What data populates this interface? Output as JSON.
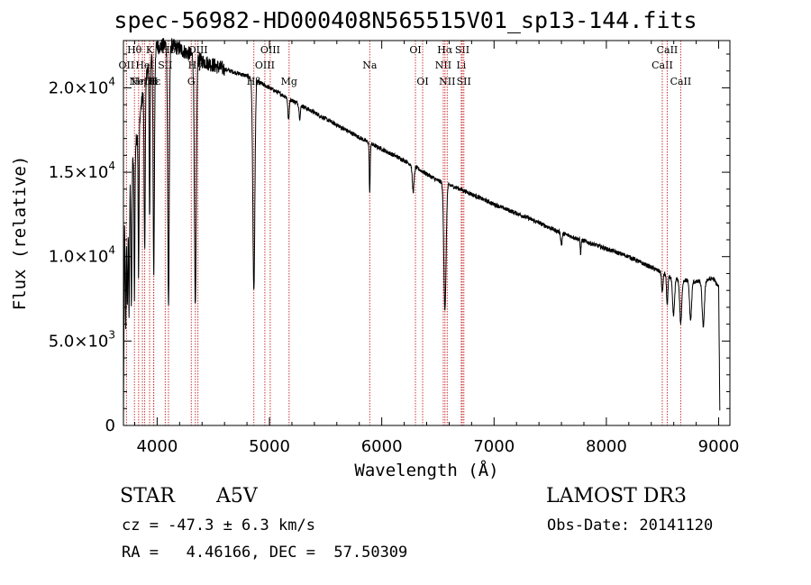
{
  "page": {
    "title": "spec-56982-HD000408N565515V01_sp13-144.fits",
    "object_class": "STAR",
    "subclass": "A5V",
    "survey": "LAMOST DR3",
    "cz_text": "cz = -47.3 ± 6.3 km/s",
    "obs_date_text": "Obs-Date: 20141120",
    "coords_text": "RA =   4.46166, DEC =  57.50309"
  },
  "colors": {
    "line_marker": "#cc3333",
    "spectrum": "#000000",
    "axis": "#000000"
  },
  "chart_data": {
    "type": "line",
    "title": "spec-56982-HD000408N565515V01_sp13-144.fits",
    "xlabel": "Wavelength (Å)",
    "ylabel": "Flux (relative)",
    "xlim": [
      3700,
      9100
    ],
    "ylim": [
      0,
      22800
    ],
    "grid": false,
    "x_ticks": [
      {
        "value": 4000,
        "label": "4000"
      },
      {
        "value": 5000,
        "label": "5000"
      },
      {
        "value": 6000,
        "label": "6000"
      },
      {
        "value": 7000,
        "label": "7000"
      },
      {
        "value": 8000,
        "label": "8000"
      },
      {
        "value": 9000,
        "label": "9000"
      }
    ],
    "y_ticks": [
      {
        "value": 0,
        "label": "0",
        "exp": ""
      },
      {
        "value": 5000,
        "label": "5.0×10",
        "exp": "3"
      },
      {
        "value": 10000,
        "label": "1.0×10",
        "exp": "4"
      },
      {
        "value": 15000,
        "label": "1.5×10",
        "exp": "4"
      },
      {
        "value": 20000,
        "label": "2.0×10",
        "exp": "4"
      }
    ],
    "continuum": [
      [
        3700,
        0
      ],
      [
        3710,
        12000
      ],
      [
        3740,
        13500
      ],
      [
        3780,
        15500
      ],
      [
        3830,
        17500
      ],
      [
        3880,
        20000
      ],
      [
        3950,
        22000
      ],
      [
        4000,
        22400
      ],
      [
        4100,
        22600
      ],
      [
        4200,
        22300
      ],
      [
        4400,
        21600
      ],
      [
        4600,
        21100
      ],
      [
        4800,
        20700
      ],
      [
        5000,
        20000
      ],
      [
        5300,
        18900
      ],
      [
        5600,
        17800
      ],
      [
        5900,
        16700
      ],
      [
        6200,
        15700
      ],
      [
        6500,
        14500
      ],
      [
        6700,
        14000
      ],
      [
        7000,
        13100
      ],
      [
        7300,
        12300
      ],
      [
        7600,
        11400
      ],
      [
        7900,
        10700
      ],
      [
        8200,
        10000
      ],
      [
        8450,
        9200
      ],
      [
        8600,
        8700
      ],
      [
        8800,
        8500
      ],
      [
        8950,
        8700
      ],
      [
        9000,
        8200
      ],
      [
        9010,
        1000
      ]
    ],
    "absorption_features": [
      {
        "center": 3720,
        "depth": 7000,
        "width": 4
      },
      {
        "center": 3735,
        "depth": 6500,
        "width": 4
      },
      {
        "center": 3750,
        "depth": 7500,
        "width": 4
      },
      {
        "center": 3771,
        "depth": 8200,
        "width": 4
      },
      {
        "center": 3798,
        "depth": 8500,
        "width": 4
      },
      {
        "center": 3835,
        "depth": 9000,
        "width": 4
      },
      {
        "center": 3889,
        "depth": 10000,
        "width": 5
      },
      {
        "center": 3933,
        "depth": 9500,
        "width": 4
      },
      {
        "center": 3970,
        "depth": 13000,
        "width": 6
      },
      {
        "center": 4101,
        "depth": 15500,
        "width": 7
      },
      {
        "center": 4340,
        "depth": 15000,
        "width": 8
      },
      {
        "center": 4861,
        "depth": 12500,
        "width": 9
      },
      {
        "center": 5170,
        "depth": 1300,
        "width": 6
      },
      {
        "center": 5270,
        "depth": 800,
        "width": 6
      },
      {
        "center": 5893,
        "depth": 3000,
        "width": 4
      },
      {
        "center": 6280,
        "depth": 1500,
        "width": 8
      },
      {
        "center": 6563,
        "depth": 7500,
        "width": 10
      },
      {
        "center": 7600,
        "depth": 700,
        "width": 6
      },
      {
        "center": 7771,
        "depth": 800,
        "width": 4
      },
      {
        "center": 8498,
        "depth": 1200,
        "width": 6
      },
      {
        "center": 8542,
        "depth": 1800,
        "width": 6
      },
      {
        "center": 8598,
        "depth": 2200,
        "width": 9
      },
      {
        "center": 8662,
        "depth": 2600,
        "width": 9
      },
      {
        "center": 8750,
        "depth": 2300,
        "width": 9
      },
      {
        "center": 8863,
        "depth": 2700,
        "width": 10
      }
    ],
    "line_markers": [
      {
        "wavelength": 3727,
        "label": "OII",
        "row": 1
      },
      {
        "wavelength": 3798,
        "label": "Hθ",
        "row": 0
      },
      {
        "wavelength": 3835,
        "label": "Hη",
        "row": 2
      },
      {
        "wavelength": 3869,
        "label": "NeIII",
        "row": 2
      },
      {
        "wavelength": 3889,
        "label": "HeI",
        "row": 1
      },
      {
        "wavelength": 3933,
        "label": "K",
        "row": 0
      },
      {
        "wavelength": 3968,
        "label": "H",
        "row": 2
      },
      {
        "wavelength": 3970,
        "label": "Hε",
        "row": 2
      },
      {
        "wavelength": 4072,
        "label": "SII",
        "row": 1
      },
      {
        "wavelength": 4101,
        "label": "Hδ",
        "row": 0
      },
      {
        "wavelength": 4304,
        "label": "G",
        "row": 2
      },
      {
        "wavelength": 4340,
        "label": "Hγ",
        "row": 1
      },
      {
        "wavelength": 4363,
        "label": "OIII",
        "row": 0
      },
      {
        "wavelength": 4861,
        "label": "Hβ",
        "row": 2
      },
      {
        "wavelength": 4959,
        "label": "OIII",
        "row": 1
      },
      {
        "wavelength": 5007,
        "label": "OIII",
        "row": 0
      },
      {
        "wavelength": 5175,
        "label": "Mg",
        "row": 2
      },
      {
        "wavelength": 5893,
        "label": "Na",
        "row": 1
      },
      {
        "wavelength": 6300,
        "label": "OI",
        "row": 0
      },
      {
        "wavelength": 6364,
        "label": "OI",
        "row": 2
      },
      {
        "wavelength": 6548,
        "label": "NII",
        "row": 1
      },
      {
        "wavelength": 6563,
        "label": "Hα",
        "row": 0
      },
      {
        "wavelength": 6583,
        "label": "NII",
        "row": 2
      },
      {
        "wavelength": 6708,
        "label": "Li",
        "row": 1
      },
      {
        "wavelength": 6717,
        "label": "SII",
        "row": 0
      },
      {
        "wavelength": 6731,
        "label": "SII",
        "row": 2
      },
      {
        "wavelength": 8498,
        "label": "CaII",
        "row": 1
      },
      {
        "wavelength": 8542,
        "label": "CaII",
        "row": 0
      },
      {
        "wavelength": 8662,
        "label": "CaII",
        "row": 2
      }
    ]
  }
}
